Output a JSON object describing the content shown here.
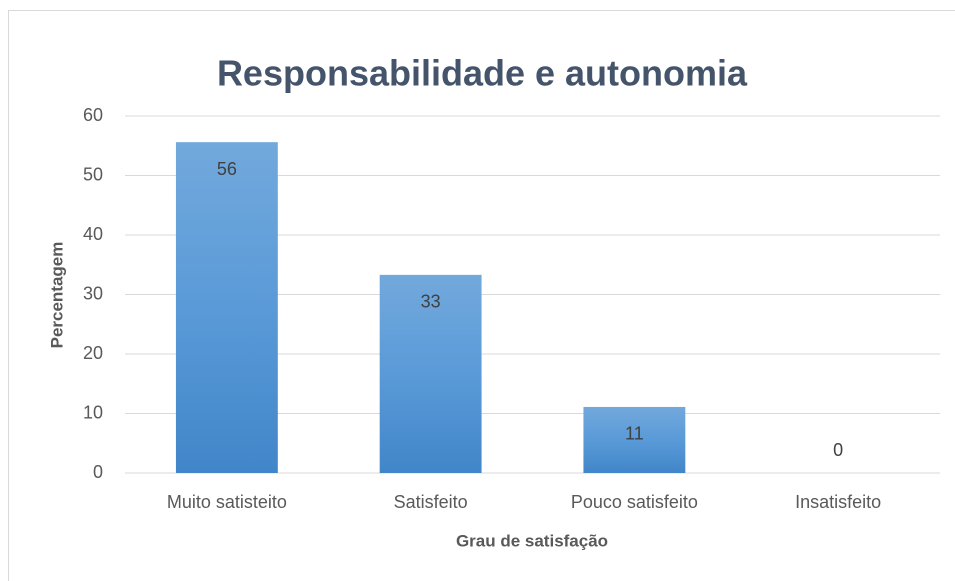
{
  "chart_data": {
    "type": "bar",
    "title": "Responsabilidade e autonomia",
    "x_label": "Grau de satisfação",
    "y_label": "Percentagem",
    "categories": [
      "Muito satisteito",
      "Satisfeito",
      "Pouco satisfeito",
      "Insatisfeito"
    ],
    "values": [
      55.6,
      33.3,
      11.1,
      0
    ],
    "value_labels": [
      "56",
      "33",
      "11",
      "0"
    ],
    "color": "#5b9bd5",
    "ylim": [
      0,
      60
    ],
    "yticks": [
      0,
      10,
      20,
      30,
      40,
      50,
      60
    ],
    "grid": true
  }
}
